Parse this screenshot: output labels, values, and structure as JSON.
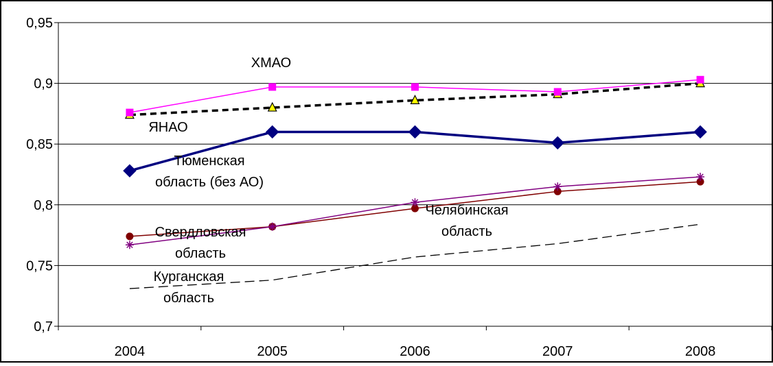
{
  "chart_data": {
    "type": "line",
    "categories": [
      "2004",
      "2005",
      "2006",
      "2007",
      "2008"
    ],
    "ylim": [
      0.7,
      0.95
    ],
    "y_ticks": [
      {
        "value": 0.7,
        "label": "0,7"
      },
      {
        "value": 0.75,
        "label": "0,75"
      },
      {
        "value": 0.8,
        "label": "0,8"
      },
      {
        "value": 0.85,
        "label": "0,85"
      },
      {
        "value": 0.9,
        "label": "0,9"
      },
      {
        "value": 0.95,
        "label": "0,95"
      }
    ],
    "grid": true,
    "series": [
      {
        "id": "khmao",
        "name": "ХМАО",
        "values": [
          0.876,
          0.897,
          0.897,
          0.893,
          0.903
        ],
        "color": "#ff00ff",
        "marker": "square",
        "dash": "solid"
      },
      {
        "id": "yanao",
        "name": "ЯНАО",
        "values": [
          0.874,
          0.88,
          0.886,
          0.891,
          0.9
        ],
        "color": "#000000",
        "marker": "triangle",
        "dash": "dashed-bold"
      },
      {
        "id": "tyumen",
        "name": "Тюменская область (без АО)",
        "values": [
          0.828,
          0.86,
          0.86,
          0.851,
          0.86
        ],
        "color": "#000080",
        "marker": "diamond",
        "dash": "solid-bold"
      },
      {
        "id": "chelyabinsk",
        "name": "Челябинская область",
        "values": [
          0.767,
          0.782,
          0.802,
          0.815,
          0.823
        ],
        "color": "#800080",
        "marker": "star",
        "dash": "solid"
      },
      {
        "id": "sverdlovsk",
        "name": "Свердловская область",
        "values": [
          0.774,
          0.782,
          0.797,
          0.811,
          0.819
        ],
        "color": "#800000",
        "marker": "circle",
        "dash": "solid"
      },
      {
        "id": "kurgan",
        "name": "Курганская область",
        "values": [
          0.731,
          0.738,
          0.757,
          0.768,
          0.784
        ],
        "color": "#000000",
        "marker": "none",
        "dash": "dashed-thin"
      }
    ],
    "annotations": {
      "khmao": [
        "ХМАО"
      ],
      "yanao": [
        "ЯНАО"
      ],
      "tyumen": [
        "Тюменская",
        "область (без АО)"
      ],
      "chelyabinsk": [
        "Челябинская",
        "область"
      ],
      "sverdlovsk": [
        "Свердловская",
        "область"
      ],
      "kurgan": [
        "Курганская",
        "область"
      ]
    }
  }
}
